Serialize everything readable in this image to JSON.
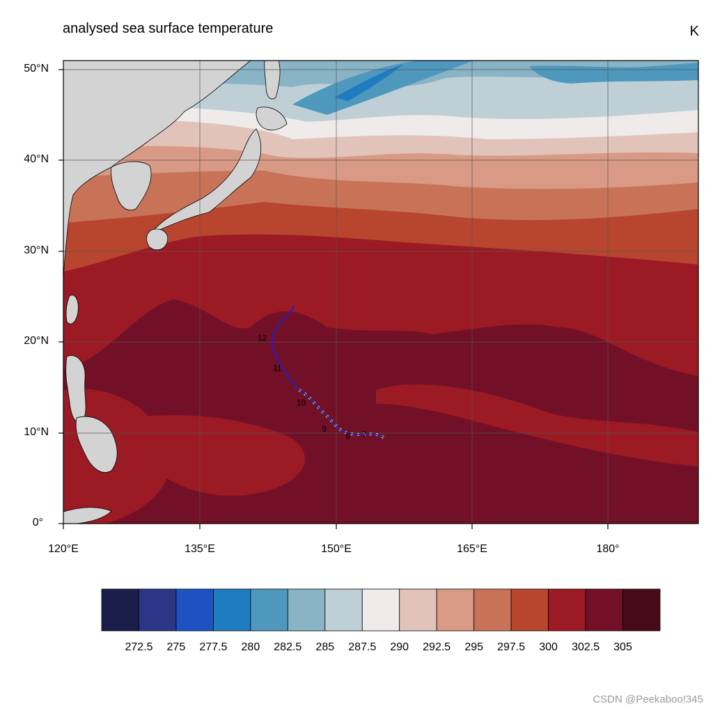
{
  "map": {
    "title": "analysed sea surface temperature",
    "units": "K",
    "lat_labels": [
      "50°N",
      "40°N",
      "30°N",
      "20°N",
      "10°N",
      "0°"
    ],
    "lon_labels": [
      "120°E",
      "135°E",
      "150°E",
      "165°E",
      "180°"
    ],
    "extent": {
      "lon_min": 120,
      "lon_max": 190,
      "lat_min": 0,
      "lat_max": 51
    },
    "land_color": "#d3d3d3",
    "track": {
      "color": "#1f1fd6",
      "highlight_color": "#e8d21a",
      "points": [
        [
          155.3,
          9.5
        ],
        [
          154.6,
          9.8
        ],
        [
          153.5,
          9.9
        ],
        [
          152.2,
          9.8
        ],
        [
          151.2,
          10.0
        ],
        [
          150.3,
          10.5
        ],
        [
          149.2,
          11.7
        ],
        [
          148.0,
          12.9
        ],
        [
          146.9,
          14.1
        ],
        [
          145.6,
          15.0
        ],
        [
          144.8,
          16.2
        ],
        [
          143.9,
          17.6
        ],
        [
          143.3,
          18.7
        ],
        [
          143.0,
          19.9
        ],
        [
          143.2,
          21.0
        ],
        [
          143.9,
          22.2
        ],
        [
          145.0,
          23.2
        ],
        [
          145.4,
          24.0
        ]
      ],
      "day_labels": [
        {
          "text": "7",
          "lon": 152.9,
          "lat": 9.9
        },
        {
          "text": "8",
          "lon": 151.1,
          "lat": 9.7
        },
        {
          "text": "9",
          "lon": 148.5,
          "lat": 10.5
        },
        {
          "text": "10",
          "lon": 145.7,
          "lat": 13.4
        },
        {
          "text": "11",
          "lon": 143.1,
          "lat": 17.2
        },
        {
          "text": "12",
          "lon": 141.4,
          "lat": 20.5
        }
      ]
    }
  },
  "colorbar": {
    "levels": [
      "272.5",
      "275",
      "277.5",
      "280",
      "282.5",
      "285",
      "287.5",
      "290",
      "292.5",
      "295",
      "297.5",
      "300",
      "302.5",
      "305"
    ],
    "colors": [
      "#1b1e4a",
      "#2b3686",
      "#1e52c2",
      "#1f7cc1",
      "#4e98be",
      "#88b4c6",
      "#bfcfd6",
      "#efebea",
      "#e2c3b9",
      "#d89a85",
      "#c87358",
      "#b8452e",
      "#9b1a24",
      "#721028",
      "#460b17"
    ]
  },
  "watermark": "CSDN @Peekaboo!345"
}
